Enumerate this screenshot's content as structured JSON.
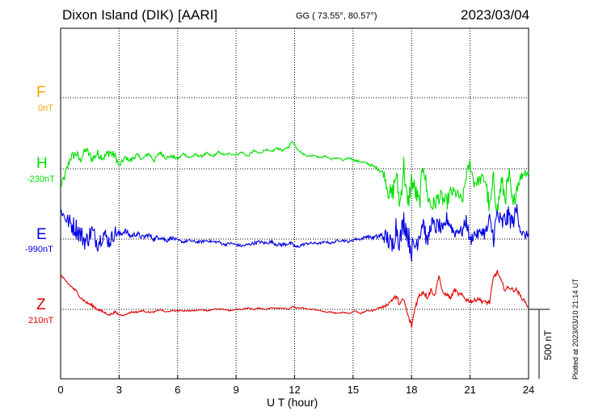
{
  "header": {
    "station": "Dixon Island (DIK)",
    "institute": "[AARI]",
    "coords": "GG ( 73.55°,  80.57°)",
    "date": "2023/03/04"
  },
  "plotted_note": "Plotted at 2023/03/10 21:14 UT",
  "scale_label": "500 nT",
  "chart_data": {
    "type": "line",
    "xlabel": "U T (hour)",
    "xlim": [
      0,
      24
    ],
    "x_ticks": [
      "0",
      "3",
      "6",
      "9",
      "12",
      "15",
      "18",
      "21",
      "24"
    ],
    "grid": true,
    "scale_nT": 500,
    "channels": [
      {
        "name": "F",
        "baseline_label": "0nT",
        "color": "#f0a800",
        "values": []
      },
      {
        "name": "H",
        "baseline_label": "-230nT",
        "color": "#00e000",
        "x": [
          0,
          0.2,
          0.5,
          0.8,
          1.0,
          1.3,
          1.6,
          1.9,
          2.2,
          2.5,
          2.8,
          3.0,
          3.3,
          3.6,
          3.9,
          4.2,
          4.5,
          4.8,
          5.1,
          5.4,
          5.7,
          6.0,
          6.3,
          6.6,
          6.9,
          7.2,
          7.5,
          7.8,
          8.1,
          8.4,
          8.7,
          9.0,
          9.3,
          9.6,
          9.9,
          10.2,
          10.5,
          10.8,
          11.1,
          11.4,
          11.7,
          11.9,
          12.1,
          12.4,
          12.7,
          13.0,
          13.3,
          13.6,
          13.9,
          14.2,
          14.5,
          14.8,
          15.1,
          15.4,
          15.7,
          16.0,
          16.3,
          16.6,
          16.8,
          17.0,
          17.2,
          17.4,
          17.6,
          17.8,
          18.0,
          18.2,
          18.4,
          18.6,
          18.8,
          19.0,
          19.2,
          19.4,
          19.6,
          19.8,
          20.0,
          20.2,
          20.4,
          20.6,
          20.8,
          21.0,
          21.2,
          21.4,
          21.6,
          21.8,
          22.0,
          22.2,
          22.4,
          22.6,
          22.8,
          23.0,
          23.2,
          23.4,
          23.6,
          23.8,
          24.0
        ],
        "values": [
          -130,
          -60,
          80,
          110,
          60,
          140,
          70,
          110,
          80,
          120,
          90,
          20,
          80,
          60,
          100,
          70,
          110,
          60,
          120,
          80,
          90,
          70,
          110,
          80,
          100,
          90,
          110,
          90,
          120,
          100,
          110,
          100,
          120,
          90,
          130,
          110,
          140,
          120,
          150,
          130,
          160,
          200,
          150,
          110,
          90,
          100,
          80,
          90,
          70,
          80,
          60,
          80,
          60,
          50,
          40,
          20,
          0,
          -40,
          -160,
          -200,
          -40,
          -260,
          30,
          -280,
          -80,
          -170,
          -260,
          60,
          -180,
          -270,
          -250,
          -200,
          -220,
          -250,
          -170,
          -170,
          -190,
          -240,
          -50,
          40,
          -100,
          -90,
          -70,
          -80,
          -300,
          -80,
          -300,
          -100,
          -200,
          -60,
          -280,
          -120,
          -60,
          -20,
          -30
        ],
        "noise": [
          25,
          30,
          35,
          35,
          30,
          30,
          30,
          30,
          30,
          35,
          30,
          20,
          15,
          15,
          15,
          15,
          15,
          15,
          15,
          15,
          12,
          10,
          10,
          10,
          10,
          10,
          10,
          8,
          8,
          8,
          8,
          8,
          8,
          8,
          8,
          8,
          8,
          8,
          8,
          8,
          8,
          10,
          8,
          6,
          6,
          6,
          6,
          6,
          6,
          6,
          6,
          6,
          8,
          8,
          8,
          10,
          15,
          30,
          60,
          80,
          80,
          80,
          80,
          80,
          80,
          80,
          80,
          80,
          70,
          60,
          60,
          60,
          60,
          60,
          50,
          40,
          40,
          40,
          40,
          40,
          40,
          40,
          40,
          60,
          80,
          80,
          80,
          80,
          80,
          80,
          60,
          60,
          40,
          30,
          30
        ]
      },
      {
        "name": "E",
        "baseline_label": "-990nT",
        "color": "#0000e0",
        "x": [
          0,
          0.2,
          0.5,
          0.8,
          1.0,
          1.3,
          1.6,
          1.9,
          2.2,
          2.5,
          2.8,
          3.0,
          3.3,
          3.6,
          3.9,
          4.2,
          4.5,
          4.8,
          5.1,
          5.4,
          5.7,
          6.0,
          6.3,
          6.6,
          6.9,
          7.2,
          7.5,
          7.8,
          8.1,
          8.4,
          8.7,
          9.0,
          9.3,
          9.6,
          9.9,
          10.2,
          10.5,
          10.8,
          11.1,
          11.4,
          11.7,
          11.9,
          12.1,
          12.4,
          12.7,
          13.0,
          13.3,
          13.6,
          13.9,
          14.2,
          14.5,
          14.8,
          15.1,
          15.4,
          15.7,
          16.0,
          16.3,
          16.6,
          16.8,
          17.0,
          17.2,
          17.4,
          17.6,
          17.8,
          18.0,
          18.2,
          18.4,
          18.6,
          18.8,
          19.0,
          19.2,
          19.4,
          19.6,
          19.8,
          20.0,
          20.2,
          20.4,
          20.6,
          20.8,
          21.0,
          21.2,
          21.4,
          21.6,
          21.8,
          22.0,
          22.2,
          22.4,
          22.6,
          22.8,
          23.0,
          23.2,
          23.4,
          23.6,
          23.8,
          24.0
        ],
        "values": [
          210,
          160,
          110,
          80,
          40,
          -20,
          60,
          -30,
          40,
          -20,
          50,
          30,
          60,
          20,
          40,
          10,
          30,
          0,
          20,
          -10,
          10,
          -10,
          -20,
          -10,
          -20,
          -20,
          -10,
          -20,
          -20,
          -40,
          -30,
          -40,
          -50,
          -40,
          -30,
          -20,
          -30,
          -20,
          -40,
          -40,
          -30,
          -40,
          -60,
          -40,
          -30,
          -30,
          -30,
          -20,
          -30,
          -10,
          -10,
          -20,
          0,
          0,
          20,
          10,
          20,
          20,
          0,
          -70,
          100,
          -20,
          140,
          40,
          -80,
          -40,
          40,
          140,
          -40,
          120,
          80,
          100,
          40,
          150,
          100,
          40,
          70,
          50,
          140,
          -20,
          40,
          30,
          60,
          40,
          120,
          20,
          180,
          100,
          140,
          160,
          120,
          220,
          60,
          20,
          40
        ],
        "noise": [
          30,
          40,
          70,
          80,
          80,
          70,
          70,
          60,
          60,
          60,
          50,
          30,
          20,
          20,
          20,
          20,
          20,
          20,
          20,
          20,
          15,
          10,
          10,
          10,
          10,
          10,
          10,
          10,
          10,
          10,
          10,
          10,
          10,
          10,
          12,
          12,
          12,
          12,
          12,
          15,
          15,
          15,
          15,
          10,
          10,
          10,
          8,
          8,
          8,
          8,
          8,
          8,
          10,
          10,
          10,
          12,
          20,
          50,
          80,
          90,
          90,
          90,
          90,
          90,
          90,
          90,
          80,
          70,
          60,
          60,
          60,
          60,
          60,
          50,
          50,
          40,
          40,
          40,
          50,
          50,
          40,
          40,
          40,
          60,
          80,
          80,
          80,
          80,
          80,
          80,
          60,
          60,
          40,
          30,
          30
        ]
      },
      {
        "name": "Z",
        "baseline_label": "210nT",
        "color": "#e00000",
        "x": [
          0,
          0.2,
          0.5,
          0.8,
          1.0,
          1.3,
          1.6,
          1.9,
          2.2,
          2.5,
          2.8,
          3.0,
          3.3,
          3.6,
          3.9,
          4.2,
          4.5,
          4.8,
          5.1,
          5.4,
          5.7,
          6.0,
          6.3,
          6.6,
          6.9,
          7.2,
          7.5,
          7.8,
          8.1,
          8.4,
          8.7,
          9.0,
          9.3,
          9.6,
          9.9,
          10.2,
          10.5,
          10.8,
          11.1,
          11.4,
          11.7,
          11.9,
          12.1,
          12.4,
          12.7,
          13.0,
          13.3,
          13.6,
          13.9,
          14.2,
          14.5,
          14.8,
          15.1,
          15.4,
          15.7,
          16.0,
          16.3,
          16.6,
          16.8,
          17.0,
          17.2,
          17.4,
          17.6,
          17.8,
          18.0,
          18.2,
          18.4,
          18.6,
          18.8,
          19.0,
          19.2,
          19.4,
          19.6,
          19.8,
          20.0,
          20.2,
          20.4,
          20.6,
          20.8,
          21.0,
          21.2,
          21.4,
          21.6,
          21.8,
          22.0,
          22.2,
          22.4,
          22.6,
          22.8,
          23.0,
          23.2,
          23.4,
          23.6,
          23.8,
          24.0
        ],
        "values": [
          250,
          210,
          170,
          130,
          90,
          50,
          30,
          0,
          -20,
          -40,
          -20,
          -40,
          -40,
          -20,
          -20,
          -10,
          -20,
          -20,
          0,
          -20,
          -10,
          -10,
          -10,
          -10,
          -10,
          0,
          -10,
          0,
          0,
          0,
          -10,
          0,
          0,
          10,
          0,
          10,
          0,
          10,
          10,
          10,
          0,
          20,
          10,
          10,
          0,
          0,
          -10,
          -20,
          -20,
          -30,
          -20,
          -30,
          -10,
          -30,
          -10,
          -10,
          10,
          20,
          40,
          70,
          90,
          40,
          70,
          -40,
          -120,
          30,
          100,
          130,
          90,
          140,
          100,
          250,
          110,
          110,
          80,
          140,
          110,
          100,
          70,
          60,
          60,
          80,
          60,
          50,
          50,
          230,
          270,
          200,
          140,
          160,
          140,
          140,
          90,
          60,
          10
        ],
        "noise": [
          10,
          10,
          10,
          10,
          10,
          10,
          10,
          10,
          8,
          8,
          8,
          6,
          6,
          6,
          6,
          5,
          5,
          5,
          5,
          5,
          4,
          4,
          4,
          4,
          4,
          4,
          4,
          4,
          4,
          4,
          4,
          4,
          4,
          4,
          4,
          4,
          4,
          4,
          4,
          4,
          4,
          4,
          4,
          4,
          4,
          4,
          4,
          4,
          4,
          4,
          4,
          4,
          4,
          4,
          4,
          4,
          6,
          8,
          10,
          15,
          20,
          20,
          20,
          20,
          20,
          20,
          20,
          20,
          20,
          20,
          15,
          15,
          15,
          15,
          15,
          15,
          15,
          15,
          15,
          15,
          15,
          15,
          15,
          15,
          15,
          15,
          15,
          15,
          15,
          15,
          15,
          15,
          15,
          10,
          10
        ]
      }
    ]
  }
}
